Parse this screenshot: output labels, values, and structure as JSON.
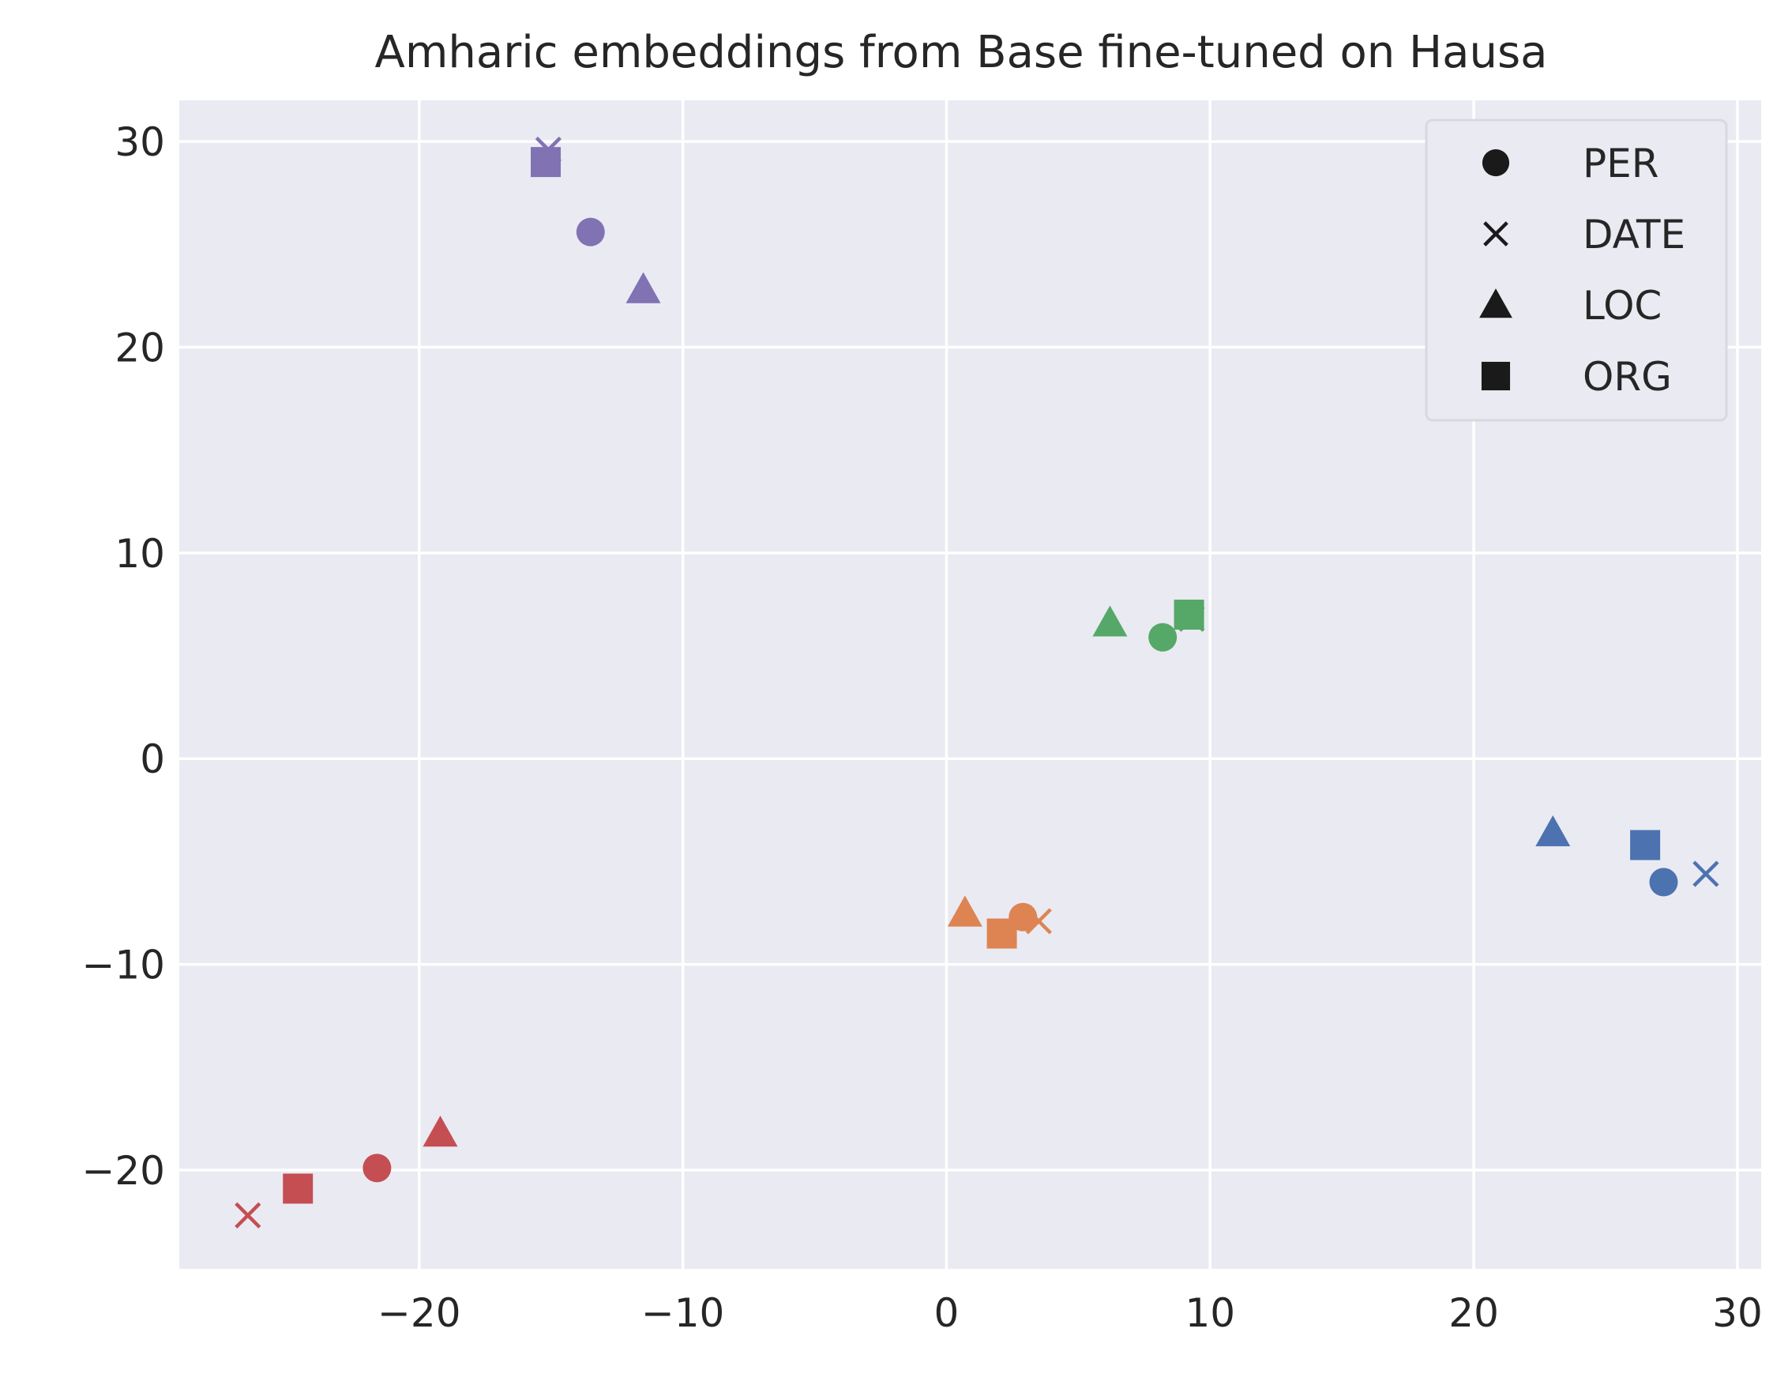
{
  "chart_data": {
    "type": "scatter",
    "title": "Amharic embeddings from Base fine-tuned on Hausa",
    "xlabel": "",
    "ylabel": "",
    "xlim": [
      -29.1,
      30.9
    ],
    "ylim": [
      -24.8,
      32.0
    ],
    "xticks": [
      -20,
      -10,
      0,
      10,
      20,
      30
    ],
    "yticks": [
      -20,
      -10,
      0,
      10,
      20,
      30
    ],
    "xtick_labels": [
      "−20",
      "−10",
      "0",
      "10",
      "20",
      "30"
    ],
    "ytick_labels": [
      "−20",
      "−10",
      "0",
      "10",
      "20",
      "30"
    ],
    "grid": true,
    "background": "#eaeaf2",
    "grid_color": "#ffffff",
    "legend_position": "top-right",
    "legend": [
      {
        "label": "PER",
        "marker": "circle"
      },
      {
        "label": "DATE",
        "marker": "x"
      },
      {
        "label": "LOC",
        "marker": "triangle"
      },
      {
        "label": "ORG",
        "marker": "square"
      }
    ],
    "legend_marker_color": "#1a1a1a",
    "points": [
      {
        "group": "purple",
        "color": "#8172b3",
        "marker": "x",
        "x": -15.1,
        "y": 29.6
      },
      {
        "group": "purple",
        "color": "#8172b3",
        "marker": "square",
        "x": -15.2,
        "y": 29.0
      },
      {
        "group": "purple",
        "color": "#8172b3",
        "marker": "circle",
        "x": -13.5,
        "y": 25.6
      },
      {
        "group": "purple",
        "color": "#8172b3",
        "marker": "triangle",
        "x": -11.5,
        "y": 22.8
      },
      {
        "group": "green",
        "color": "#55a868",
        "marker": "triangle",
        "x": 6.2,
        "y": 6.6
      },
      {
        "group": "green",
        "color": "#55a868",
        "marker": "circle",
        "x": 8.2,
        "y": 5.9
      },
      {
        "group": "green",
        "color": "#55a868",
        "marker": "x",
        "x": 9.3,
        "y": 6.8
      },
      {
        "group": "green",
        "color": "#55a868",
        "marker": "square",
        "x": 9.2,
        "y": 7.0
      },
      {
        "group": "blue",
        "color": "#4c72b0",
        "marker": "triangle",
        "x": 23.0,
        "y": -3.6
      },
      {
        "group": "blue",
        "color": "#4c72b0",
        "marker": "square",
        "x": 26.5,
        "y": -4.2
      },
      {
        "group": "blue",
        "color": "#4c72b0",
        "marker": "x",
        "x": 28.8,
        "y": -5.6
      },
      {
        "group": "blue",
        "color": "#4c72b0",
        "marker": "circle",
        "x": 27.2,
        "y": -6.0
      },
      {
        "group": "orange",
        "color": "#dd8452",
        "marker": "triangle",
        "x": 0.7,
        "y": -7.5
      },
      {
        "group": "orange",
        "color": "#dd8452",
        "marker": "x",
        "x": 3.5,
        "y": -7.9
      },
      {
        "group": "orange",
        "color": "#dd8452",
        "marker": "circle",
        "x": 2.9,
        "y": -7.7
      },
      {
        "group": "orange",
        "color": "#dd8452",
        "marker": "square",
        "x": 2.1,
        "y": -8.5
      },
      {
        "group": "red",
        "color": "#c44e52",
        "marker": "triangle",
        "x": -19.2,
        "y": -18.2
      },
      {
        "group": "red",
        "color": "#c44e52",
        "marker": "circle",
        "x": -21.6,
        "y": -19.9
      },
      {
        "group": "red",
        "color": "#c44e52",
        "marker": "square",
        "x": -24.6,
        "y": -20.9
      },
      {
        "group": "red",
        "color": "#c44e52",
        "marker": "x",
        "x": -26.5,
        "y": -22.2
      }
    ]
  }
}
